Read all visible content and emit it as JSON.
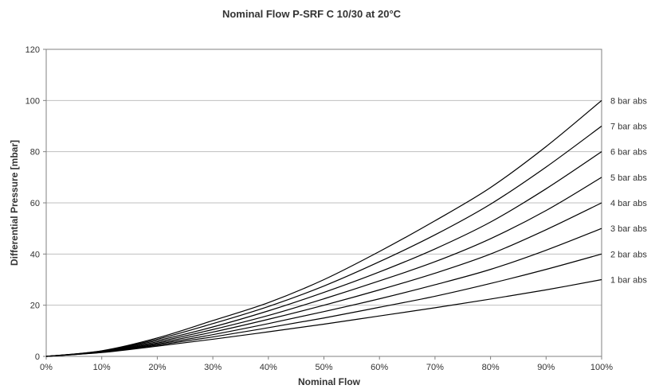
{
  "chart_data": {
    "type": "line",
    "title": "Nominal Flow P-SRF C 10/30 at 20°C",
    "xlabel": "Nominal Flow",
    "ylabel": "Differential Pressure [mbar]",
    "xlim": [
      0,
      100
    ],
    "ylim": [
      0,
      120
    ],
    "x_ticks": [
      "0%",
      "10%",
      "20%",
      "30%",
      "40%",
      "50%",
      "60%",
      "70%",
      "80%",
      "90%",
      "100%"
    ],
    "y_ticks": [
      "0",
      "20",
      "40",
      "60",
      "80",
      "100",
      "120"
    ],
    "grid": "horizontal",
    "legend": "labels at right end of each line",
    "x": [
      0,
      10,
      20,
      30,
      40,
      50,
      60,
      70,
      80,
      90,
      100
    ],
    "series": [
      {
        "name": "8 bar abs",
        "values": [
          0,
          2.2,
          7.2,
          14,
          21,
          30,
          41,
          53,
          66,
          82,
          100
        ]
      },
      {
        "name": "7 bar abs",
        "values": [
          0,
          2.1,
          6.7,
          12.8,
          19.5,
          27.5,
          37,
          47.5,
          59.5,
          74,
          90
        ]
      },
      {
        "name": "6 bar abs",
        "values": [
          0,
          2.0,
          6.2,
          11.5,
          17.8,
          25,
          33,
          42,
          52.5,
          65.5,
          80
        ]
      },
      {
        "name": "5 bar abs",
        "values": [
          0,
          1.9,
          5.7,
          10.5,
          16,
          22.5,
          29.5,
          37,
          46,
          57,
          70
        ]
      },
      {
        "name": "4 bar abs",
        "values": [
          0,
          1.8,
          5.2,
          9.5,
          14.5,
          20,
          26,
          32.5,
          40,
          49.5,
          60
        ]
      },
      {
        "name": "3 bar abs",
        "values": [
          0,
          1.7,
          4.8,
          8.5,
          12.8,
          17.5,
          22.5,
          28,
          34,
          41.5,
          50
        ]
      },
      {
        "name": "2 bar abs",
        "values": [
          0,
          1.6,
          4.4,
          7.6,
          11.2,
          15,
          19.2,
          23.5,
          28.5,
          34,
          40
        ]
      },
      {
        "name": "1 bar abs",
        "values": [
          0,
          1.5,
          4.0,
          6.7,
          9.6,
          12.6,
          15.8,
          19,
          22.4,
          26,
          30
        ]
      }
    ],
    "colors": {
      "line": "#000000",
      "grid": "#bfbfbf",
      "axis": "#808080",
      "text": "#333333"
    }
  }
}
